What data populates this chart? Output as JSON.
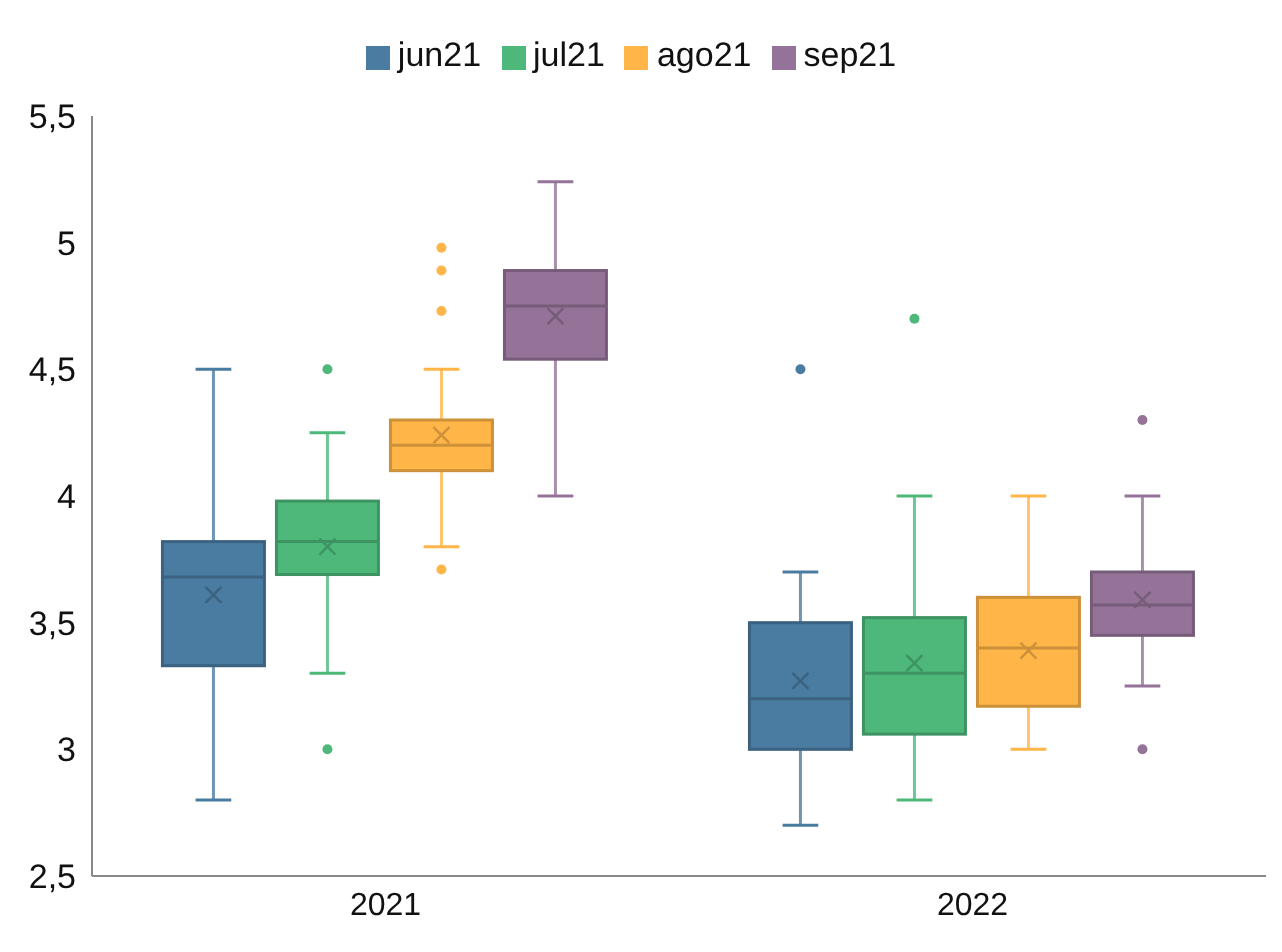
{
  "chart_data": {
    "type": "box",
    "categories": [
      "2021",
      "2022"
    ],
    "series": [
      {
        "name": "jun21",
        "color": "#4a7ba0",
        "boxes": [
          {
            "low": 2.8,
            "q1": 3.33,
            "median": 3.68,
            "q3": 3.82,
            "high": 4.5,
            "mean": 3.61
          },
          {
            "low": 2.7,
            "q1": 3.0,
            "median": 3.2,
            "q3": 3.5,
            "high": 3.7,
            "mean": 3.27,
            "outliers": [
              4.5
            ]
          }
        ]
      },
      {
        "name": "jul21",
        "color": "#4db87a",
        "boxes": [
          {
            "low": 3.3,
            "q1": 3.69,
            "median": 3.82,
            "q3": 3.98,
            "high": 4.25,
            "mean": 3.8,
            "outliers": [
              4.5,
              3.0
            ]
          },
          {
            "low": 2.8,
            "q1": 3.06,
            "median": 3.3,
            "q3": 3.52,
            "high": 4.0,
            "mean": 3.34,
            "outliers": [
              4.7
            ]
          }
        ]
      },
      {
        "name": "ago21",
        "color": "#ffb547",
        "boxes": [
          {
            "low": 3.8,
            "q1": 4.1,
            "median": 4.2,
            "q3": 4.3,
            "high": 4.5,
            "mean": 4.24,
            "outliers": [
              4.98,
              4.89,
              4.73,
              3.71
            ]
          },
          {
            "low": 3.0,
            "q1": 3.17,
            "median": 3.4,
            "q3": 3.6,
            "high": 4.0,
            "mean": 3.39
          }
        ]
      },
      {
        "name": "sep21",
        "color": "#957399",
        "boxes": [
          {
            "low": 4.0,
            "q1": 4.54,
            "median": 4.75,
            "q3": 4.89,
            "high": 5.24,
            "mean": 4.71
          },
          {
            "low": 3.25,
            "q1": 3.45,
            "median": 3.57,
            "q3": 3.7,
            "high": 4.0,
            "mean": 3.59,
            "outliers": [
              4.3,
              3.0
            ]
          }
        ]
      }
    ],
    "ylim": [
      2.5,
      5.5
    ],
    "yticks": [
      {
        "value": 2.5,
        "label": "2,5"
      },
      3,
      {
        "value": 3.5,
        "label": "3,5"
      },
      4,
      {
        "value": 4.5,
        "label": "4,5"
      },
      5,
      {
        "value": 5.5,
        "label": "5,5"
      }
    ],
    "legend": "top",
    "grid": false
  }
}
